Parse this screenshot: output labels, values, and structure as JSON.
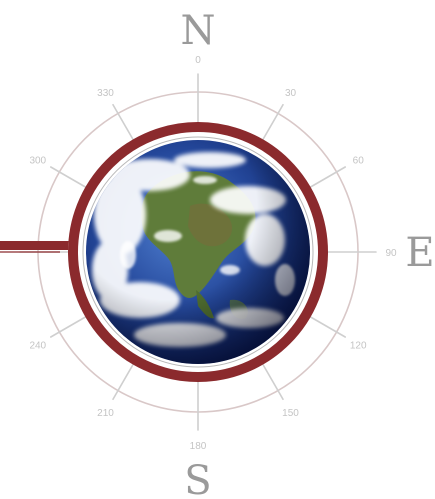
{
  "compass": {
    "cardinals": {
      "north": "N",
      "east": "E",
      "south": "S"
    },
    "degrees": [
      "0",
      "30",
      "60",
      "90",
      "120",
      "150",
      "180",
      "210",
      "240",
      "300",
      "330"
    ],
    "colors": {
      "ring": "#d9c8c8",
      "ticks": "#cfcfcf",
      "frame": "#8b2a2d",
      "cardinal_text": "#9a9a9a",
      "degree_text": "#c4c4c4"
    }
  },
  "globe": {
    "icon": "earth-globe-icon",
    "colors": {
      "ocean_dark": "#0f2a6e",
      "ocean_light": "#3f6fc4",
      "land": "#5f7c3a",
      "cloud": "#ffffff"
    }
  }
}
